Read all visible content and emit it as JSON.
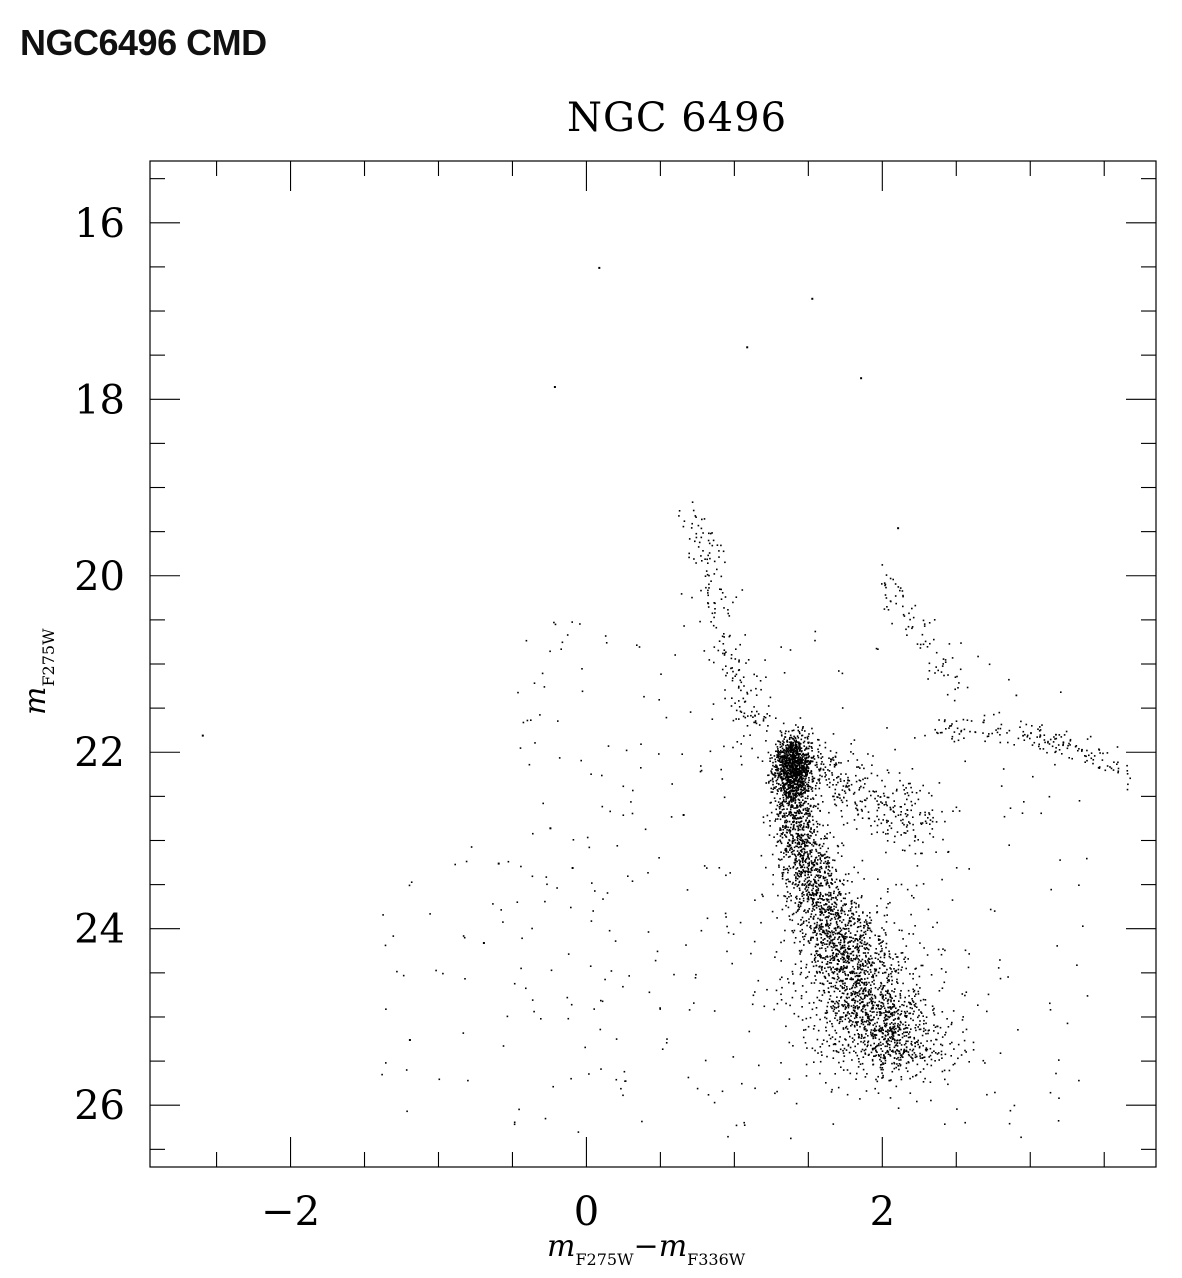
{
  "page": {
    "title": "NGC6496 CMD"
  },
  "chart_data": {
    "type": "scatter",
    "title": "NGC 6496",
    "xlabel": {
      "main": "m",
      "sub": "F275W",
      "dash": "−",
      "main2": "m",
      "sub2": "F336W"
    },
    "ylabel": {
      "main": "m",
      "sub": "F275W"
    },
    "xlim": [
      -2.95,
      3.85
    ],
    "ylim": [
      26.7,
      15.3
    ],
    "y_inverted": true,
    "x_ticks": [
      -2,
      0,
      2
    ],
    "x_tick_labels": [
      "−2",
      "0",
      "2"
    ],
    "x_minor_step": 0.5,
    "y_ticks": [
      16,
      18,
      20,
      22,
      24,
      26
    ],
    "y_tick_labels": [
      "16",
      "18",
      "20",
      "22",
      "24",
      "26"
    ],
    "y_minor_step": 0.5,
    "grid": false,
    "legend": "none",
    "marker_color": "#000000",
    "sequences": {
      "main_sequence_ridge": [
        [
          1.35,
          22.0
        ],
        [
          1.38,
          22.5
        ],
        [
          1.45,
          23.0
        ],
        [
          1.55,
          23.5
        ],
        [
          1.68,
          24.0
        ],
        [
          1.82,
          24.5
        ],
        [
          1.97,
          25.0
        ],
        [
          2.12,
          25.5
        ]
      ],
      "subgiant_branch": [
        [
          1.45,
          22.0
        ],
        [
          1.7,
          22.3
        ],
        [
          2.0,
          22.6
        ],
        [
          2.3,
          22.8
        ]
      ],
      "red_giant_branch": [
        [
          2.0,
          20.0
        ],
        [
          2.2,
          20.5
        ],
        [
          2.5,
          21.2
        ]
      ],
      "horizontal_branch": [
        [
          2.3,
          21.7
        ],
        [
          2.7,
          21.75
        ],
        [
          3.1,
          21.8
        ],
        [
          3.4,
          22.0
        ],
        [
          3.65,
          22.25
        ]
      ],
      "blue_sequence": [
        [
          0.72,
          19.3
        ],
        [
          0.8,
          19.8
        ],
        [
          0.88,
          20.4
        ],
        [
          0.98,
          21.0
        ],
        [
          1.1,
          21.5
        ],
        [
          1.25,
          21.9
        ]
      ]
    },
    "isolated_points": [
      [
        0.08,
        16.5
      ],
      [
        1.52,
        16.85
      ],
      [
        1.08,
        17.4
      ],
      [
        -0.22,
        17.85
      ],
      [
        -2.6,
        21.8
      ],
      [
        1.85,
        17.75
      ],
      [
        2.1,
        19.45
      ],
      [
        0.65,
        22.7
      ],
      [
        -0.25,
        22.85
      ],
      [
        -0.1,
        23.3
      ],
      [
        -0.6,
        23.25
      ],
      [
        -1.2,
        25.25
      ],
      [
        -0.7,
        24.15
      ]
    ],
    "scatter_regions": [
      {
        "type": "gaussian-cluster",
        "x": [
          1.2,
          1.6
        ],
        "y": [
          21.8,
          22.6
        ]
      },
      {
        "type": "field",
        "x": [
          -2.7,
          3.6
        ],
        "y": [
          16.2,
          26.6
        ]
      }
    ]
  }
}
